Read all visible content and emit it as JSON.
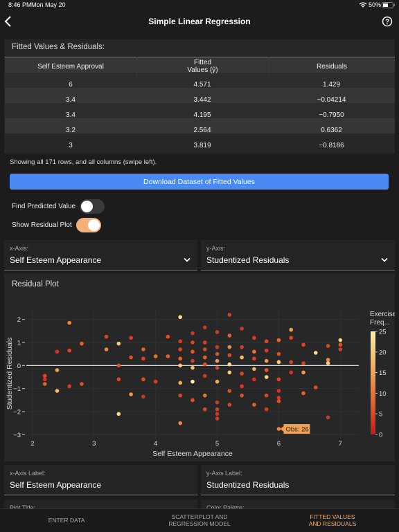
{
  "status": {
    "time": "8:46 PM",
    "date": "Mon May 20",
    "battery": "50%"
  },
  "nav": {
    "title": "Simple Linear Regression"
  },
  "table": {
    "title": "Fitted Values & Residuals:",
    "headers": [
      "Self Esteem Approval",
      "Fitted Values (ŷ)",
      "Residuals"
    ],
    "rows": [
      [
        "6",
        "4.571",
        "1.429"
      ],
      [
        "3.4",
        "3.442",
        "−0.04214"
      ],
      [
        "3.4",
        "4.195",
        "−0.7950"
      ],
      [
        "3.2",
        "2.564",
        "0.6362"
      ],
      [
        "3",
        "3.819",
        "−0.8186"
      ]
    ],
    "note": "Showing all 171 rows, and all columns (swipe left)."
  },
  "button": "Download Dataset of Fitted Values",
  "toggles": [
    {
      "label": "Find Predicted Value",
      "on": false
    },
    {
      "label": "Show Residual Plot",
      "on": true
    }
  ],
  "axis_selects": [
    {
      "label": "x-Axis:",
      "value": "Self Esteem Appearance"
    },
    {
      "label": "y-Axis:",
      "value": "Studentized Residuals"
    }
  ],
  "chart_data": {
    "type": "scatter",
    "title": "Residual Plot",
    "xlabel": "Self Esteem Appearance",
    "ylabel": "Studentized Residuals",
    "xlim": [
      1.9,
      7.3
    ],
    "ylim": [
      -3.2,
      2.5
    ],
    "xticks": [
      2,
      3,
      4,
      5,
      6,
      7
    ],
    "yticks": [
      {
        "value": -3,
        "label": "−3"
      },
      {
        "value": -2,
        "label": "−2"
      },
      {
        "value": -1,
        "label": "−1"
      },
      0,
      1,
      2
    ],
    "grid": true,
    "colorbar_title": [
      "Exercise",
      "Freq..."
    ],
    "clim": [
      0,
      25
    ],
    "cticks": [
      0,
      5,
      10,
      15,
      20,
      25
    ],
    "colorscale": [
      "#c8191e",
      "#e8652c",
      "#f6b25a",
      "#fdf0a8"
    ],
    "annotation": {
      "text": "Obs: 26",
      "x": 6,
      "y": -2.75
    },
    "x": [
      2.2,
      2.2,
      2.2,
      2.4,
      2.4,
      2.4,
      2.6,
      2.6,
      2.6,
      2.8,
      2.8,
      3.2,
      3.2,
      3.4,
      3.4,
      3.4,
      3.4,
      3.6,
      3.6,
      3.6,
      3.8,
      3.8,
      3.8,
      3.8,
      4.0,
      4.0,
      4.2,
      4.2,
      4.4,
      4.4,
      4.4,
      4.4,
      4.4,
      4.4,
      4.4,
      4.4,
      4.6,
      4.6,
      4.6,
      4.6,
      4.6,
      4.6,
      4.6,
      4.8,
      4.8,
      4.8,
      4.8,
      4.8,
      4.8,
      4.8,
      4.8,
      5.0,
      5.0,
      5.0,
      5.0,
      5.0,
      5.0,
      5.0,
      5.0,
      5.0,
      5.0,
      5.2,
      5.2,
      5.2,
      5.2,
      5.2,
      5.2,
      5.2,
      5.2,
      5.4,
      5.4,
      5.4,
      5.4,
      5.4,
      5.4,
      5.6,
      5.6,
      5.6,
      5.6,
      5.6,
      5.6,
      5.8,
      5.8,
      5.8,
      5.8,
      5.8,
      5.8,
      5.8,
      6.0,
      6.0,
      6.0,
      6.0,
      6.0,
      6.0,
      6.0,
      6.0,
      6.2,
      6.2,
      6.2,
      6.2,
      6.4,
      6.4,
      6.4,
      6.4,
      6.6,
      6.6,
      6.8,
      6.8,
      6.8,
      6.8,
      7.0,
      7.0,
      7.0
    ],
    "values": [
      -0.45,
      -0.6,
      -0.8,
      0.6,
      -0.2,
      -1.1,
      1.85,
      0.65,
      -0.9,
      0.95,
      -0.8,
      1.25,
      0.7,
      0.95,
      0,
      -0.6,
      -2.1,
      1.2,
      0.35,
      -1.25,
      0.7,
      0.3,
      -0.6,
      -1.35,
      -0.7,
      0.4,
      1.25,
      0.4,
      2.1,
      1.05,
      0.7,
      0.3,
      0,
      -0.75,
      -1.3,
      -2.5,
      1.4,
      1.0,
      0.6,
      0.2,
      -0.1,
      -0.7,
      -1.5,
      1.65,
      1.0,
      0.7,
      0.35,
      0.05,
      -0.45,
      -1.3,
      -1.9,
      1.45,
      0.8,
      0.5,
      0.2,
      -0.1,
      -0.7,
      -1.6,
      -1.9,
      -2.1,
      -2.3,
      2.2,
      1.3,
      0.8,
      0.45,
      0.05,
      -0.3,
      -1.1,
      -1.7,
      1.6,
      0.8,
      0.35,
      -0.35,
      -0.9,
      -1.3,
      1.2,
      0.6,
      0.3,
      -0.15,
      -0.6,
      -1.7,
      1.05,
      0.65,
      0.2,
      -0.2,
      -0.5,
      -1.3,
      -1.9,
      1.1,
      0.5,
      0.15,
      -0.6,
      -1.1,
      -1.4,
      -1.55,
      -2.75,
      1.55,
      1.2,
      0.15,
      -0.3,
      0.9,
      0.1,
      -0.3,
      -1.2,
      0.55,
      -0.95,
      0.85,
      0.25,
      0.1,
      -2.25,
      1.1,
      0.9,
      0.7
    ],
    "color_values": [
      5,
      3,
      8,
      3,
      15,
      18,
      12,
      5,
      4,
      8,
      6,
      5,
      12,
      20,
      6,
      5,
      22,
      4,
      6,
      14,
      8,
      5,
      6,
      3,
      4,
      10,
      6,
      8,
      22,
      4,
      5,
      8,
      20,
      16,
      5,
      12,
      3,
      5,
      7,
      4,
      18,
      25,
      6,
      3,
      4,
      5,
      8,
      6,
      3,
      10,
      5,
      4,
      3,
      6,
      14,
      5,
      16,
      3,
      4,
      3,
      4,
      4,
      8,
      12,
      5,
      22,
      20,
      6,
      5,
      3,
      4,
      18,
      5,
      4,
      6,
      4,
      10,
      5,
      16,
      3,
      8,
      5,
      4,
      14,
      7,
      22,
      5,
      4,
      8,
      6,
      20,
      5,
      3,
      4,
      6,
      12,
      15,
      5,
      4,
      3,
      5,
      4,
      14,
      8,
      22,
      6,
      5,
      12,
      20,
      3,
      20,
      6,
      4
    ]
  },
  "label_fields": [
    {
      "label": "x-Axis Label:",
      "value": "Self Esteem Appearance"
    },
    {
      "label": "y-Axis Label:",
      "value": "Studentized Residuals"
    },
    {
      "label": "Plot Title:"
    },
    {
      "label": "Color Palette:"
    }
  ],
  "tabs": [
    {
      "label": "ENTER DATA",
      "active": false
    },
    {
      "label": "SCATTERPLOT AND REGRESSION MODEL",
      "active": false
    },
    {
      "label": "FITTED VALUES AND RESIDUALS",
      "active": true
    }
  ]
}
